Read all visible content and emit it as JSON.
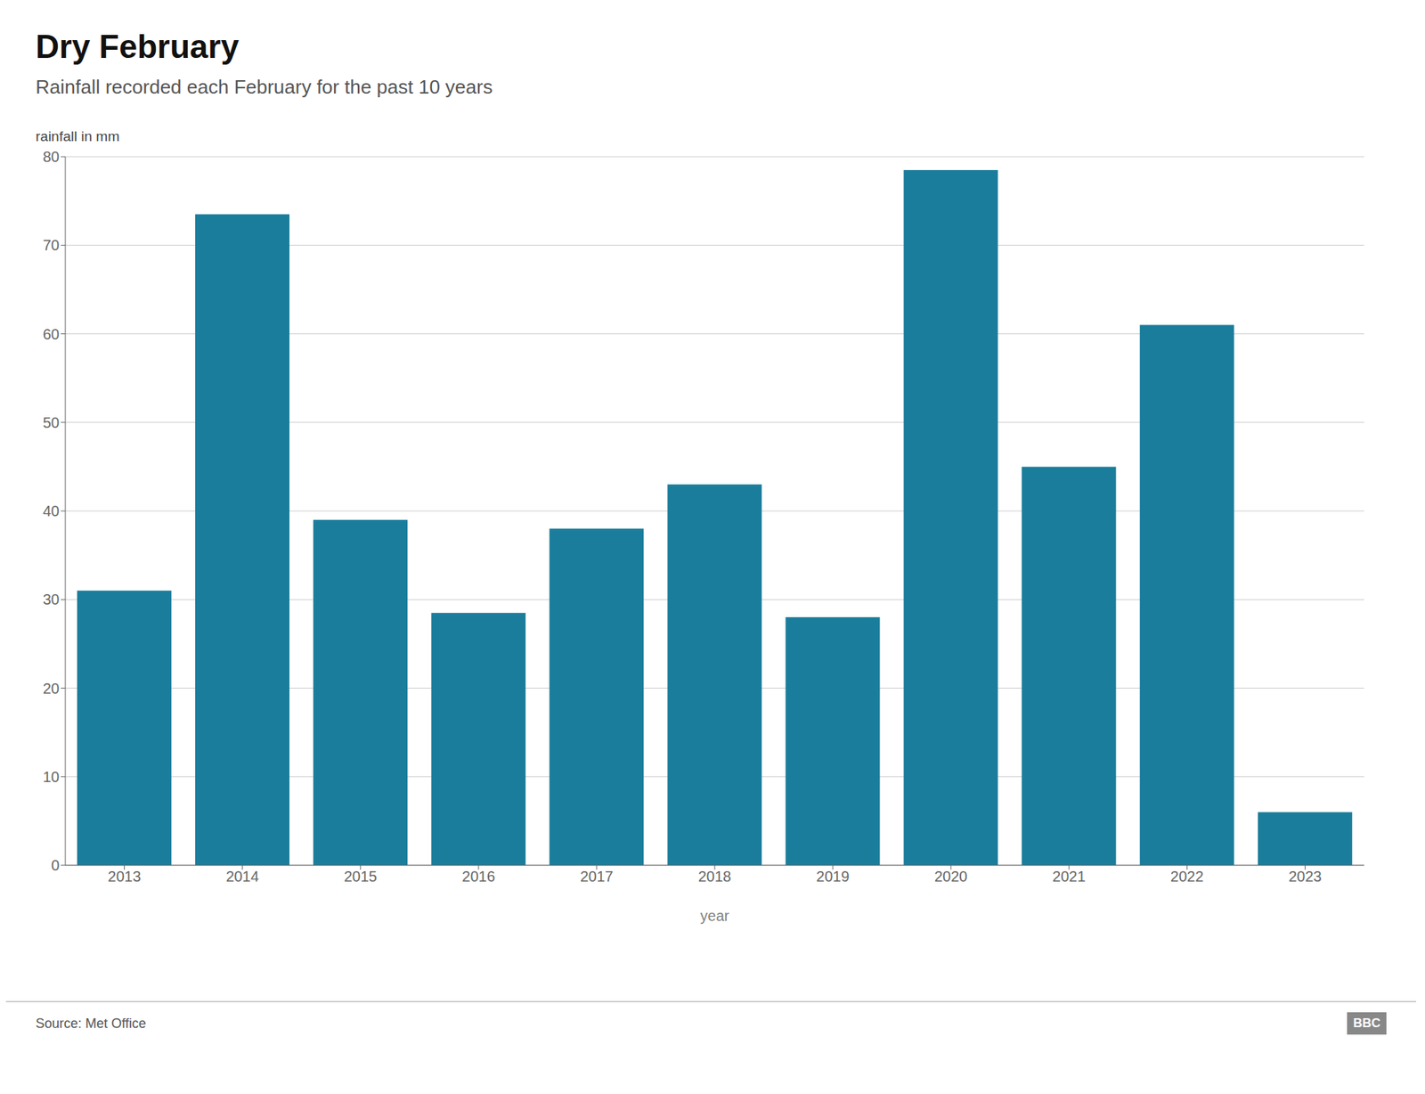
{
  "chart_data": {
    "type": "bar",
    "title": "Dry February",
    "subtitle": "Rainfall recorded each February for the past 10 years",
    "ylabel": "rainfall in mm",
    "xlabel": "year",
    "annotations": [
      "Source: Met Office",
      "BBC"
    ],
    "categories": [
      "2013",
      "2014",
      "2015",
      "2016",
      "2017",
      "2018",
      "2019",
      "2020",
      "2021",
      "2022",
      "2023"
    ],
    "values": [
      31,
      73.5,
      39,
      28.5,
      38,
      43,
      28,
      78.5,
      45,
      61,
      6
    ],
    "color": "#1a7d9b",
    "ylim": [
      0,
      80
    ],
    "yticks": [
      0,
      10,
      20,
      30,
      40,
      50,
      60,
      70,
      80
    ],
    "grid": true
  }
}
